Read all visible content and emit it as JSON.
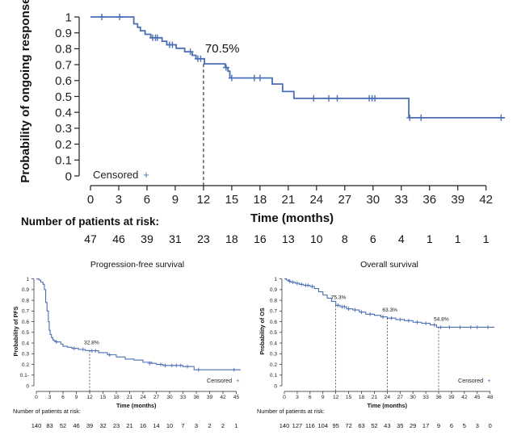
{
  "chart_data": [
    {
      "type": "line",
      "panel": "main",
      "ylabel": "Probability of ongoing response",
      "xlabel": "Time (months)",
      "xlim": [
        0,
        44
      ],
      "ylim": [
        0,
        1
      ],
      "xticks": [
        0,
        3,
        6,
        9,
        12,
        15,
        18,
        21,
        24,
        27,
        30,
        33,
        36,
        39,
        42
      ],
      "yticks": [
        0,
        0.1,
        0.2,
        0.3,
        0.4,
        0.5,
        0.6,
        0.7,
        0.8,
        0.9,
        1
      ],
      "ytick_labels": [
        "0",
        "0.1",
        "0.2",
        "0.3",
        "0.4",
        "0.5",
        "0.6",
        "0.7",
        "0.8",
        "0.9",
        "1"
      ],
      "color": "#4a6fb5",
      "legend": "Censored",
      "legend_symbol": "+",
      "steps": [
        [
          0,
          1
        ],
        [
          4.6,
          0.957
        ],
        [
          5.0,
          0.935
        ],
        [
          5.3,
          0.913
        ],
        [
          5.8,
          0.891
        ],
        [
          6.4,
          0.869
        ],
        [
          7.6,
          0.847
        ],
        [
          8.1,
          0.825
        ],
        [
          9.1,
          0.803
        ],
        [
          10.0,
          0.781
        ],
        [
          10.8,
          0.759
        ],
        [
          11.2,
          0.737
        ],
        [
          12.1,
          0.705
        ],
        [
          14.3,
          0.682
        ],
        [
          14.6,
          0.659
        ],
        [
          14.8,
          0.616
        ],
        [
          19.3,
          0.578
        ],
        [
          20.4,
          0.531
        ],
        [
          21.6,
          0.488
        ],
        [
          33.8,
          0.366
        ],
        [
          44,
          0.366
        ]
      ],
      "censored": [
        [
          1.2,
          1
        ],
        [
          3.1,
          1
        ],
        [
          6.6,
          0.869
        ],
        [
          6.9,
          0.869
        ],
        [
          7.1,
          0.869
        ],
        [
          8.4,
          0.825
        ],
        [
          8.7,
          0.825
        ],
        [
          10.6,
          0.781
        ],
        [
          11.4,
          0.737
        ],
        [
          11.7,
          0.737
        ],
        [
          14.4,
          0.682
        ],
        [
          15.0,
          0.616
        ],
        [
          17.4,
          0.616
        ],
        [
          18.0,
          0.616
        ],
        [
          23.7,
          0.488
        ],
        [
          25.3,
          0.488
        ],
        [
          26.2,
          0.488
        ],
        [
          29.6,
          0.488
        ],
        [
          29.9,
          0.488
        ],
        [
          30.2,
          0.488
        ],
        [
          33.9,
          0.366
        ],
        [
          35.1,
          0.366
        ],
        [
          43.6,
          0.366
        ]
      ],
      "annotations": [
        {
          "label": "70.5%",
          "x": 12,
          "y": 0.705
        }
      ],
      "risk_title": "Number of patients at risk:",
      "risk": [
        "47",
        "46",
        "39",
        "31",
        "23",
        "18",
        "16",
        "13",
        "10",
        "8",
        "6",
        "4",
        "1",
        "1",
        "1"
      ]
    },
    {
      "type": "line",
      "panel": "pfs",
      "title": "Progression-free survival",
      "ylabel": "Probability of PFS",
      "xlabel": "Time (months)",
      "xlim": [
        0,
        46
      ],
      "ylim": [
        0,
        1.02
      ],
      "xticks": [
        0,
        3,
        6,
        9,
        12,
        15,
        18,
        21,
        24,
        27,
        30,
        33,
        36,
        39,
        42,
        45
      ],
      "yticks": [
        0,
        0.1,
        0.2,
        0.3,
        0.4,
        0.5,
        0.6,
        0.7,
        0.8,
        0.9,
        1
      ],
      "ytick_labels": [
        "0",
        "0.1-",
        "0.2",
        "0.3",
        "0.4",
        "0.5",
        "0.6",
        "0.7",
        "0.8",
        "0.9",
        "1"
      ],
      "color": "#4a6fb5",
      "legend": "Censored",
      "legend_symbol": "+",
      "steps": [
        [
          0,
          1
        ],
        [
          0.6,
          0.99
        ],
        [
          1.0,
          0.97
        ],
        [
          1.5,
          0.95
        ],
        [
          1.8,
          0.9
        ],
        [
          2.1,
          0.78
        ],
        [
          2.4,
          0.7
        ],
        [
          2.7,
          0.6
        ],
        [
          2.9,
          0.52
        ],
        [
          3.1,
          0.48
        ],
        [
          3.4,
          0.45
        ],
        [
          3.7,
          0.43
        ],
        [
          4.0,
          0.42
        ],
        [
          4.5,
          0.41
        ],
        [
          5.5,
          0.39
        ],
        [
          6.0,
          0.37
        ],
        [
          7.0,
          0.36
        ],
        [
          8.0,
          0.35
        ],
        [
          9.5,
          0.34
        ],
        [
          11.0,
          0.33
        ],
        [
          12.0,
          0.328
        ],
        [
          14.0,
          0.31
        ],
        [
          16.0,
          0.29
        ],
        [
          18.0,
          0.27
        ],
        [
          20.0,
          0.25
        ],
        [
          22.0,
          0.24
        ],
        [
          24.0,
          0.22
        ],
        [
          26.0,
          0.21
        ],
        [
          27.0,
          0.2
        ],
        [
          28.5,
          0.19
        ],
        [
          33.0,
          0.18
        ],
        [
          35.5,
          0.15
        ],
        [
          46,
          0.15
        ]
      ],
      "censored": [
        [
          4.5,
          0.41
        ],
        [
          8.5,
          0.35
        ],
        [
          10.5,
          0.34
        ],
        [
          12.5,
          0.328
        ],
        [
          13.3,
          0.328
        ],
        [
          16.5,
          0.29
        ],
        [
          25.5,
          0.21
        ],
        [
          28.0,
          0.2
        ],
        [
          29.0,
          0.19
        ],
        [
          30.5,
          0.19
        ],
        [
          31.5,
          0.19
        ],
        [
          32.5,
          0.19
        ],
        [
          34.0,
          0.18
        ],
        [
          36.5,
          0.15
        ],
        [
          44.5,
          0.15
        ]
      ],
      "annotations": [
        {
          "label": "32.8%",
          "x": 12,
          "y": 0.328
        }
      ],
      "risk_title": "Number of patients at risk:",
      "risk": [
        "140",
        "83",
        "52",
        "46",
        "39",
        "32",
        "23",
        "21",
        "16",
        "14",
        "10",
        "7",
        "3",
        "2",
        "2",
        "1"
      ]
    },
    {
      "type": "line",
      "panel": "os",
      "title": "Overall survival",
      "ylabel": "Probability of OS",
      "xlabel": "Time (months)",
      "xlim": [
        0,
        49
      ],
      "ylim": [
        0,
        1.02
      ],
      "xticks": [
        0,
        3,
        6,
        9,
        12,
        15,
        18,
        21,
        24,
        27,
        30,
        33,
        36,
        39,
        42,
        45,
        48
      ],
      "yticks": [
        0,
        0.1,
        0.2,
        0.3,
        0.4,
        0.5,
        0.6,
        0.7,
        0.8,
        0.9,
        1
      ],
      "ytick_labels": [
        "0",
        "0.1",
        "0.2",
        "0.3",
        "0.4",
        "0.5",
        "0.6",
        "0.7",
        "0.8",
        "0.9",
        "1"
      ],
      "color": "#4a6fb5",
      "legend": "Censored",
      "legend_symbol": "+",
      "steps": [
        [
          0,
          1
        ],
        [
          0.5,
          0.99
        ],
        [
          1.0,
          0.98
        ],
        [
          1.5,
          0.97
        ],
        [
          2.5,
          0.96
        ],
        [
          3.5,
          0.95
        ],
        [
          4.5,
          0.94
        ],
        [
          6.0,
          0.93
        ],
        [
          7.0,
          0.91
        ],
        [
          8.0,
          0.88
        ],
        [
          9.0,
          0.85
        ],
        [
          10.0,
          0.82
        ],
        [
          11.0,
          0.79
        ],
        [
          12.0,
          0.753
        ],
        [
          13.0,
          0.74
        ],
        [
          14.5,
          0.72
        ],
        [
          16.0,
          0.71
        ],
        [
          17.5,
          0.69
        ],
        [
          19.0,
          0.67
        ],
        [
          21.0,
          0.66
        ],
        [
          22.5,
          0.645
        ],
        [
          24.0,
          0.633
        ],
        [
          26.0,
          0.62
        ],
        [
          28.0,
          0.61
        ],
        [
          30.0,
          0.595
        ],
        [
          32.0,
          0.585
        ],
        [
          34.0,
          0.57
        ],
        [
          35.5,
          0.548
        ],
        [
          49,
          0.548
        ]
      ],
      "censored": [
        [
          1.2,
          0.98
        ],
        [
          2.0,
          0.97
        ],
        [
          3.0,
          0.96
        ],
        [
          4.0,
          0.95
        ],
        [
          5.0,
          0.94
        ],
        [
          5.5,
          0.94
        ],
        [
          6.5,
          0.93
        ],
        [
          12.5,
          0.753
        ],
        [
          13.5,
          0.74
        ],
        [
          14.0,
          0.74
        ],
        [
          15.0,
          0.72
        ],
        [
          16.5,
          0.71
        ],
        [
          18.0,
          0.69
        ],
        [
          20.0,
          0.67
        ],
        [
          23.0,
          0.645
        ],
        [
          25.0,
          0.633
        ],
        [
          27.0,
          0.62
        ],
        [
          29.0,
          0.61
        ],
        [
          31.0,
          0.595
        ],
        [
          33.0,
          0.585
        ],
        [
          35.0,
          0.57
        ],
        [
          36.5,
          0.548
        ],
        [
          38.5,
          0.548
        ],
        [
          41.0,
          0.548
        ],
        [
          43.5,
          0.548
        ],
        [
          45.0,
          0.548
        ],
        [
          47.5,
          0.548
        ]
      ],
      "annotations": [
        {
          "label": "75.3%",
          "x": 12,
          "y": 0.753
        },
        {
          "label": "63.3%",
          "x": 24,
          "y": 0.633
        },
        {
          "label": "54.8%",
          "x": 36,
          "y": 0.548
        }
      ],
      "risk_title": "Number of patients at risk:",
      "risk": [
        "140",
        "127",
        "116",
        "104",
        "95",
        "72",
        "63",
        "52",
        "43",
        "35",
        "29",
        "17",
        "9",
        "6",
        "5",
        "3",
        "0"
      ]
    }
  ]
}
